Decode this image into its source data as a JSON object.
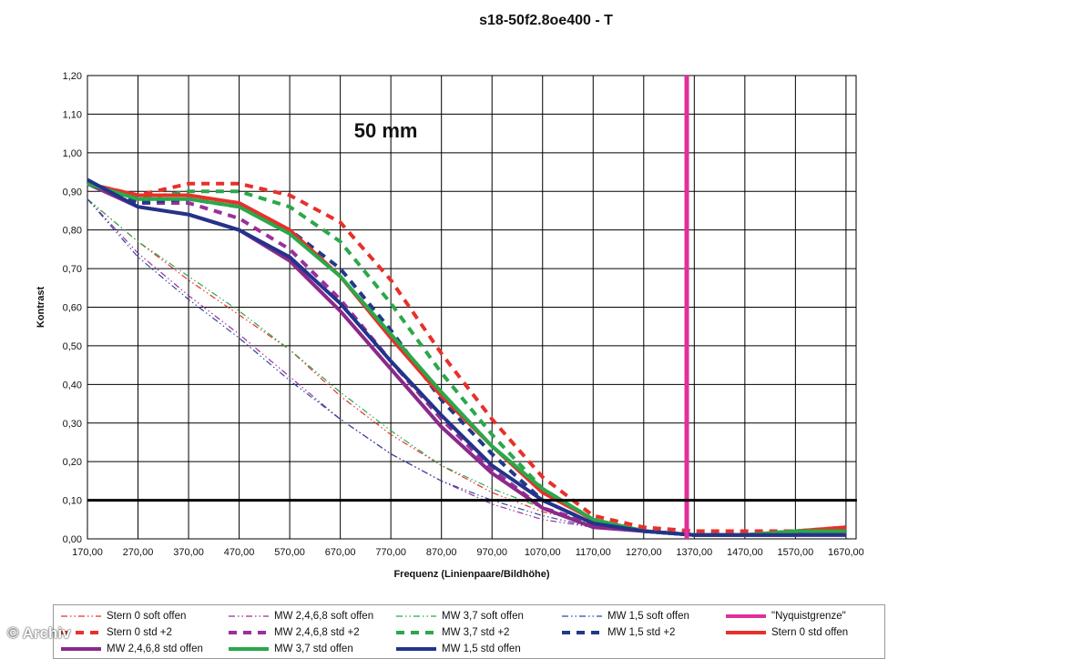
{
  "chart_data": {
    "type": "line",
    "title": "s18-50f2.8oe400 - T",
    "xlabel": "Frequenz (Linienpaare/Bildhöhe)",
    "ylabel": "Kontrast",
    "annotation": "50 mm",
    "xlim": [
      170,
      1690
    ],
    "ylim": [
      0,
      1.2
    ],
    "xticks": [
      "170,00",
      "270,00",
      "370,00",
      "470,00",
      "570,00",
      "670,00",
      "770,00",
      "870,00",
      "970,00",
      "1070,00",
      "1170,00",
      "1270,00",
      "1370,00",
      "1470,00",
      "1570,00",
      "1670,00"
    ],
    "yticks": [
      "0,00",
      "0,10",
      "0,20",
      "0,30",
      "0,40",
      "0,50",
      "0,60",
      "0,70",
      "0,80",
      "0,90",
      "1,00",
      "1,10",
      "1,20"
    ],
    "grid": true,
    "legend_position": "bottom",
    "series": [
      {
        "name": "Stern 0 soft offen",
        "color": "#e8302a",
        "style": "dashdot",
        "width": 1.2,
        "x": [
          170,
          270,
          370,
          470,
          570,
          670,
          770,
          870,
          970,
          1070,
          1170,
          1270,
          1370,
          1470,
          1570,
          1670
        ],
        "y": [
          0.88,
          0.77,
          0.67,
          0.58,
          0.49,
          0.37,
          0.27,
          0.19,
          0.12,
          0.07,
          0.04,
          0.02,
          0.01,
          0.01,
          0.01,
          0.01
        ]
      },
      {
        "name": "MW 2,4,6,8 soft offen",
        "color": "#9b2f9b",
        "style": "dashdot",
        "width": 1.2,
        "x": [
          170,
          270,
          370,
          470,
          570,
          670,
          770,
          870,
          970,
          1070,
          1170,
          1270,
          1370,
          1470,
          1570,
          1670
        ],
        "y": [
          0.88,
          0.74,
          0.63,
          0.53,
          0.42,
          0.31,
          0.22,
          0.15,
          0.09,
          0.05,
          0.03,
          0.02,
          0.01,
          0.01,
          0.01,
          0.01
        ]
      },
      {
        "name": "MW 3,7 soft offen",
        "color": "#2aa84a",
        "style": "dashdot",
        "width": 1.2,
        "x": [
          170,
          270,
          370,
          470,
          570,
          670,
          770,
          870,
          970,
          1070,
          1170,
          1270,
          1370,
          1470,
          1570,
          1670
        ],
        "y": [
          0.88,
          0.77,
          0.68,
          0.59,
          0.49,
          0.38,
          0.28,
          0.19,
          0.13,
          0.08,
          0.04,
          0.02,
          0.01,
          0.01,
          0.01,
          0.01
        ]
      },
      {
        "name": "MW 1,5 soft offen",
        "color": "#2a4aa0",
        "style": "dashdot",
        "width": 1.2,
        "x": [
          170,
          270,
          370,
          470,
          570,
          670,
          770,
          870,
          970,
          1070,
          1170,
          1270,
          1370,
          1470,
          1570,
          1670
        ],
        "y": [
          0.88,
          0.73,
          0.62,
          0.52,
          0.41,
          0.31,
          0.22,
          0.15,
          0.1,
          0.06,
          0.03,
          0.02,
          0.01,
          0.01,
          0.01,
          0.01
        ]
      },
      {
        "name": "\"Nyquistgrenze\"",
        "color": "#e0309a",
        "style": "solid",
        "width": 5,
        "x": [
          1355,
          1355
        ],
        "y": [
          0,
          1.2
        ]
      },
      {
        "name": "Stern 0 std +2",
        "color": "#e8302a",
        "style": "dashed",
        "width": 4,
        "x": [
          170,
          270,
          370,
          470,
          570,
          670,
          770,
          870,
          970,
          1070,
          1170,
          1270,
          1370,
          1470,
          1570,
          1670
        ],
        "y": [
          0.92,
          0.89,
          0.92,
          0.92,
          0.89,
          0.82,
          0.67,
          0.48,
          0.31,
          0.16,
          0.06,
          0.03,
          0.02,
          0.02,
          0.02,
          0.03
        ]
      },
      {
        "name": "MW 2,4,6,8 std +2",
        "color": "#9b2f9b",
        "style": "dashed",
        "width": 4,
        "x": [
          170,
          270,
          370,
          470,
          570,
          670,
          770,
          870,
          970,
          1070,
          1170,
          1270,
          1370,
          1470,
          1570,
          1670
        ],
        "y": [
          0.92,
          0.87,
          0.87,
          0.83,
          0.75,
          0.62,
          0.46,
          0.31,
          0.18,
          0.08,
          0.04,
          0.02,
          0.01,
          0.01,
          0.01,
          0.02
        ]
      },
      {
        "name": "MW 3,7 std +2",
        "color": "#2aa84a",
        "style": "dashed",
        "width": 4,
        "x": [
          170,
          270,
          370,
          470,
          570,
          670,
          770,
          870,
          970,
          1070,
          1170,
          1270,
          1370,
          1470,
          1570,
          1670
        ],
        "y": [
          0.92,
          0.88,
          0.9,
          0.9,
          0.86,
          0.77,
          0.61,
          0.43,
          0.27,
          0.13,
          0.05,
          0.02,
          0.01,
          0.01,
          0.02,
          0.02
        ]
      },
      {
        "name": "MW 1,5 std +2",
        "color": "#1f3a8a",
        "style": "dashed",
        "width": 4,
        "x": [
          170,
          270,
          370,
          470,
          570,
          670,
          770,
          870,
          970,
          1070,
          1170,
          1270,
          1370,
          1470,
          1570,
          1670
        ],
        "y": [
          0.92,
          0.87,
          0.88,
          0.86,
          0.8,
          0.7,
          0.54,
          0.36,
          0.22,
          0.1,
          0.04,
          0.02,
          0.01,
          0.01,
          0.01,
          0.02
        ]
      },
      {
        "name": "Stern 0 std offen",
        "color": "#e8302a",
        "style": "solid",
        "width": 4,
        "x": [
          170,
          270,
          370,
          470,
          570,
          670,
          770,
          870,
          970,
          1070,
          1170,
          1270,
          1370,
          1470,
          1570,
          1670
        ],
        "y": [
          0.92,
          0.89,
          0.89,
          0.87,
          0.8,
          0.68,
          0.52,
          0.37,
          0.24,
          0.12,
          0.05,
          0.02,
          0.01,
          0.01,
          0.02,
          0.03
        ]
      },
      {
        "name": "MW 2,4,6,8 std offen",
        "color": "#8a2a8a",
        "style": "solid",
        "width": 4,
        "x": [
          170,
          270,
          370,
          470,
          570,
          670,
          770,
          870,
          970,
          1070,
          1170,
          1270,
          1370,
          1470,
          1570,
          1670
        ],
        "y": [
          0.92,
          0.86,
          0.84,
          0.8,
          0.72,
          0.59,
          0.44,
          0.29,
          0.17,
          0.08,
          0.03,
          0.02,
          0.01,
          0.01,
          0.01,
          0.01
        ]
      },
      {
        "name": "MW 3,7 std offen",
        "color": "#2aa84a",
        "style": "solid",
        "width": 4,
        "x": [
          170,
          270,
          370,
          470,
          570,
          670,
          770,
          870,
          970,
          1070,
          1170,
          1270,
          1370,
          1470,
          1570,
          1670
        ],
        "y": [
          0.92,
          0.88,
          0.88,
          0.86,
          0.79,
          0.68,
          0.53,
          0.38,
          0.24,
          0.13,
          0.05,
          0.02,
          0.01,
          0.01,
          0.02,
          0.02
        ]
      },
      {
        "name": "MW 1,5 std offen",
        "color": "#24338a",
        "style": "solid",
        "width": 4,
        "x": [
          170,
          270,
          370,
          470,
          570,
          670,
          770,
          870,
          970,
          1070,
          1170,
          1270,
          1370,
          1470,
          1570,
          1670
        ],
        "y": [
          0.93,
          0.86,
          0.84,
          0.8,
          0.73,
          0.61,
          0.46,
          0.32,
          0.19,
          0.1,
          0.04,
          0.02,
          0.01,
          0.01,
          0.01,
          0.01
        ]
      }
    ],
    "reference_line": {
      "y": 0.1,
      "color": "#000000"
    }
  },
  "watermark": "© Archiv"
}
